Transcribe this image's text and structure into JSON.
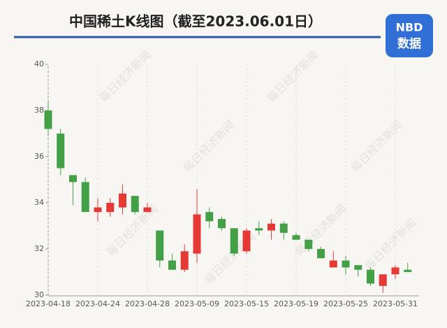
{
  "chart_data": {
    "type": "candlestick",
    "title": "中国稀土K线图（截至2023.06.01日）",
    "logo": {
      "top": "NBD",
      "bottom": "数据"
    },
    "watermark": "每日经济新闻",
    "categories": [
      "2023-04-18",
      null,
      null,
      null,
      "2023-04-24",
      null,
      null,
      null,
      "2023-04-28",
      null,
      null,
      null,
      "2023-05-09",
      null,
      null,
      null,
      "2023-05-15",
      null,
      null,
      null,
      "2023-05-19",
      null,
      null,
      null,
      "2023-05-25",
      null,
      null,
      null,
      "2023-05-31",
      null
    ],
    "open": [
      38.0,
      37.0,
      35.2,
      34.9,
      33.6,
      33.6,
      33.8,
      34.3,
      33.6,
      32.8,
      31.5,
      31.1,
      31.8,
      33.6,
      33.3,
      32.9,
      31.9,
      32.9,
      32.8,
      33.1,
      32.6,
      32.4,
      32.0,
      31.2,
      31.5,
      31.3,
      31.1,
      30.4,
      30.9,
      31.1
    ],
    "high": [
      38.4,
      37.2,
      35.2,
      35.1,
      34.2,
      34.2,
      34.8,
      34.3,
      34.0,
      32.8,
      31.8,
      32.2,
      34.6,
      33.8,
      33.4,
      32.9,
      32.9,
      33.2,
      33.3,
      33.2,
      32.7,
      32.4,
      32.1,
      31.9,
      31.7,
      31.3,
      31.2,
      30.9,
      31.3,
      31.4
    ],
    "low": [
      36.9,
      35.2,
      33.9,
      33.6,
      33.2,
      33.4,
      33.5,
      33.5,
      33.6,
      31.2,
      31.1,
      31.0,
      31.4,
      32.9,
      32.8,
      31.7,
      31.8,
      32.6,
      32.4,
      32.4,
      32.4,
      31.9,
      31.6,
      31.2,
      30.9,
      30.8,
      30.4,
      30.1,
      30.7,
      31.0
    ],
    "close": [
      37.2,
      35.5,
      34.9,
      33.6,
      33.8,
      34.0,
      34.4,
      33.6,
      33.8,
      31.5,
      31.1,
      31.9,
      33.5,
      33.2,
      32.9,
      31.8,
      32.8,
      32.8,
      33.1,
      32.7,
      32.4,
      32.0,
      31.6,
      31.5,
      31.2,
      31.1,
      30.5,
      30.9,
      31.2,
      31.0
    ],
    "up_color": "#e53935",
    "down_color": "#43a047",
    "ylim": [
      30,
      40
    ],
    "yticks": [
      30,
      32,
      34,
      36,
      38,
      40
    ]
  }
}
